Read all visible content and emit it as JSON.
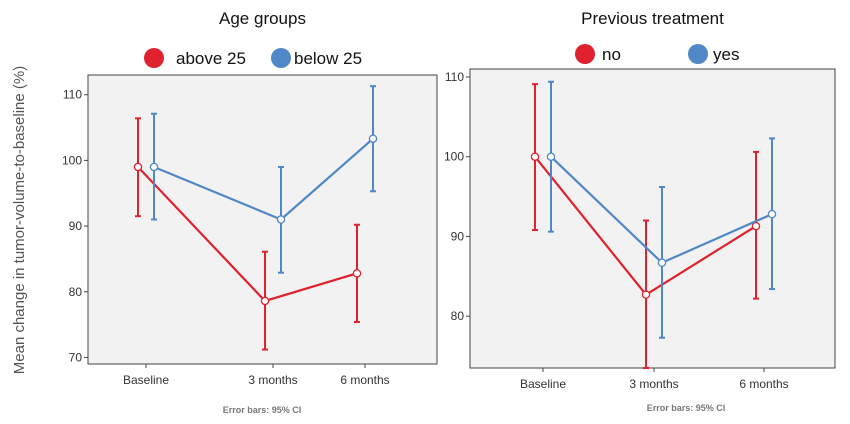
{
  "ylabel": "Mean change in tumor-volume-to-baseline (%)",
  "colors": {
    "red": "#e0212e",
    "blue": "#4f87c7"
  },
  "chart_data": [
    {
      "type": "line",
      "title": "Age groups",
      "categories": [
        "Baseline",
        "3 months",
        "6 months"
      ],
      "ylim": [
        69,
        113
      ],
      "yticks": [
        70,
        80,
        90,
        100,
        110
      ],
      "grid": false,
      "legend_position": "top",
      "error_bar_note": "Error bars: 95% CI",
      "series": [
        {
          "name": "above 25",
          "color": "#e0212e",
          "values": [
            99,
            78.6,
            82.8
          ],
          "ci_low": [
            91.5,
            71.2,
            75.4
          ],
          "ci_high": [
            106.4,
            86.1,
            90.2
          ]
        },
        {
          "name": "below 25",
          "color": "#4f87c7",
          "values": [
            99,
            91,
            103.3
          ],
          "ci_low": [
            91,
            82.9,
            95.3
          ],
          "ci_high": [
            107.1,
            99,
            111.3
          ]
        }
      ]
    },
    {
      "type": "line",
      "title": "Previous treatment",
      "categories": [
        "Baseline",
        "3 months",
        "6 months"
      ],
      "ylim": [
        73.5,
        111
      ],
      "yticks": [
        80,
        90,
        100,
        110
      ],
      "grid": false,
      "legend_position": "top",
      "error_bar_note": "Error bars: 95% CI",
      "series": [
        {
          "name": "no",
          "color": "#e0212e",
          "values": [
            100,
            82.7,
            91.3
          ],
          "ci_low": [
            90.8,
            73.5,
            82.2
          ],
          "ci_high": [
            109.1,
            92,
            100.6
          ]
        },
        {
          "name": "yes",
          "color": "#4f87c7",
          "values": [
            100,
            86.7,
            92.8
          ],
          "ci_low": [
            90.6,
            77.3,
            83.4
          ],
          "ci_high": [
            109.4,
            96.2,
            102.3
          ]
        }
      ]
    }
  ]
}
